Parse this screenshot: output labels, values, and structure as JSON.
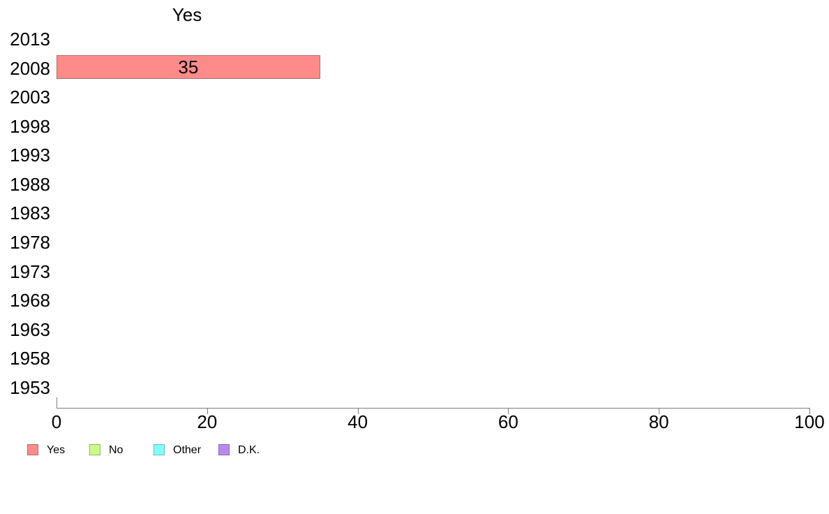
{
  "chart_data": {
    "type": "bar",
    "orientation": "horizontal",
    "title": "Yes",
    "categories": [
      "2013",
      "2008",
      "2003",
      "1998",
      "1993",
      "1988",
      "1983",
      "1978",
      "1973",
      "1968",
      "1963",
      "1958",
      "1953"
    ],
    "series": [
      {
        "name": "Yes",
        "color": "#FF8A8A",
        "border_color": "#AD6F6F",
        "points": [
          {
            "category": "2008",
            "value": 35,
            "label": "35"
          }
        ]
      },
      {
        "name": "No",
        "color": "#CCFA8D",
        "border_color": "#8FB857",
        "points": []
      },
      {
        "name": "Other",
        "color": "#85FEFF",
        "border_color": "#64BDBD",
        "points": []
      },
      {
        "name": "D.K.",
        "color": "#B98AEC",
        "border_color": "#8B63B8",
        "points": []
      }
    ],
    "xlim": [
      0,
      100
    ],
    "xticks": [
      0,
      20,
      40,
      60,
      80,
      100
    ],
    "grid": false,
    "legend_position": "bottom",
    "axis_color": "#808080",
    "text_color": "#000000",
    "background": "#FFFFFF"
  }
}
